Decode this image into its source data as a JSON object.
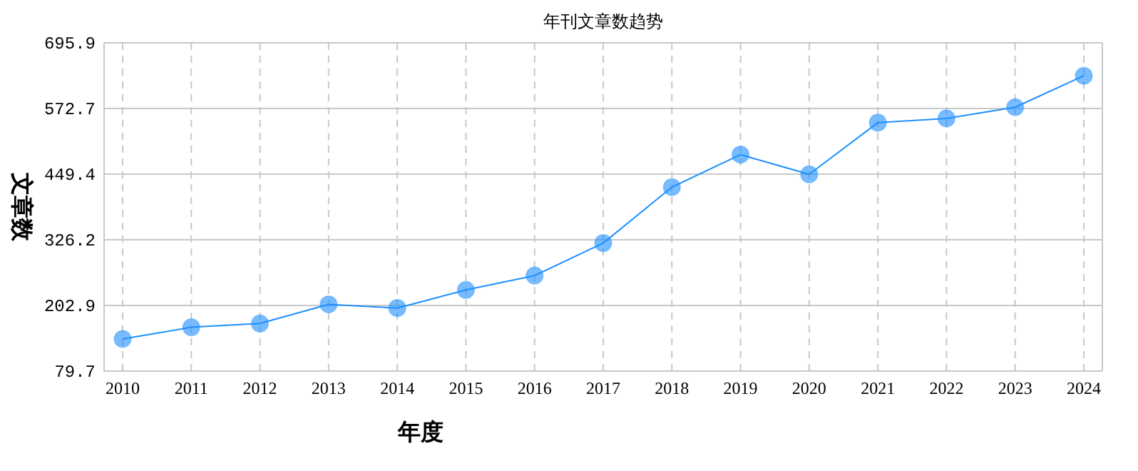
{
  "chart_data": {
    "type": "line",
    "title": "年刊文章数趋势",
    "xlabel": "年度",
    "ylabel": "文章数",
    "categories": [
      "2010",
      "2011",
      "2012",
      "2013",
      "2014",
      "2015",
      "2016",
      "2017",
      "2018",
      "2019",
      "2020",
      "2021",
      "2022",
      "2023",
      "2024"
    ],
    "series": [
      {
        "color": "#1e90ff",
        "values": [
          140,
          162,
          169,
          205,
          198,
          232,
          259,
          320,
          425,
          486,
          449,
          546,
          554,
          575,
          634
        ]
      }
    ],
    "ylim": [
      79.7,
      695.9
    ],
    "yticks": [
      79.7,
      202.9,
      326.2,
      449.4,
      572.7,
      695.9
    ],
    "grid": true,
    "marker": "circle",
    "line_style": "solid"
  }
}
